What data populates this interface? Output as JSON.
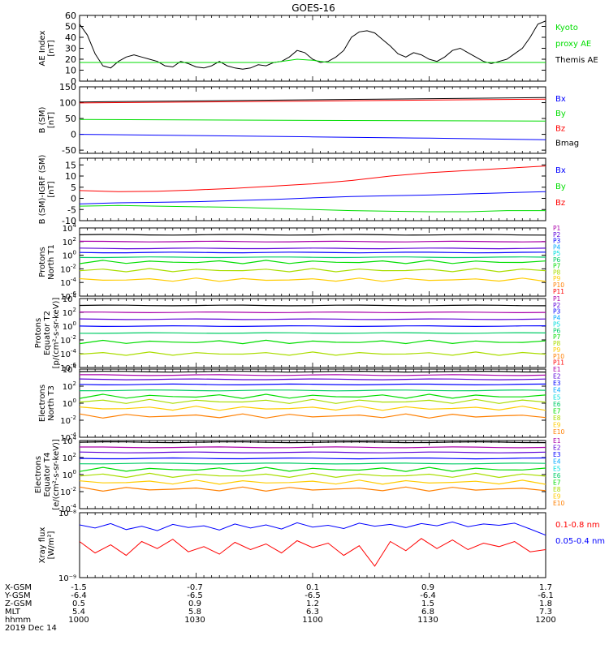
{
  "title": "GOES-16",
  "colors": {
    "black": "#000000",
    "blue": "#0000ff",
    "green": "#00dd00",
    "red": "#ff0000",
    "channel": [
      "#000000",
      "#aa00aa",
      "#5a00d8",
      "#0000ff",
      "#00aaff",
      "#00dddd",
      "#00cc66",
      "#00dd00",
      "#aadd00",
      "#ffcc00",
      "#ff7f00",
      "#ff0000",
      "#ff00aa"
    ]
  },
  "chart_data": [
    {
      "type": "line",
      "panel": "AE",
      "ylabel": [
        "AE Index",
        "[nT]"
      ],
      "yscale": "linear",
      "ylim": [
        0,
        60
      ],
      "yticks": [
        0,
        10,
        20,
        30,
        40,
        50,
        60
      ],
      "legend": [
        {
          "text": "Kyoto",
          "color": "green"
        },
        {
          "text": "proxy AE",
          "color": "green"
        },
        {
          "text": "Themis AE",
          "color": "black"
        }
      ],
      "series": [
        {
          "color": "black",
          "x": [
            0,
            2,
            4,
            6,
            8,
            10,
            12,
            14,
            16,
            18,
            20,
            22,
            24,
            26,
            28,
            30,
            32,
            34,
            36,
            38,
            40,
            42,
            44,
            46,
            48,
            50,
            52,
            54,
            56,
            58,
            60,
            62,
            64,
            66,
            68,
            70,
            72,
            74,
            76,
            78,
            80,
            82,
            84,
            86,
            88,
            90,
            92,
            94,
            96,
            98,
            100,
            102,
            104,
            106,
            108,
            110,
            112,
            114,
            116,
            118,
            120
          ],
          "y": [
            52,
            42,
            25,
            14,
            12,
            18,
            22,
            24,
            22,
            20,
            18,
            14,
            13,
            18,
            16,
            13,
            12,
            14,
            18,
            14,
            12,
            11,
            12,
            15,
            14,
            17,
            18,
            22,
            28,
            26,
            20,
            17,
            18,
            22,
            28,
            40,
            45,
            46,
            44,
            38,
            32,
            25,
            22,
            26,
            24,
            20,
            18,
            22,
            28,
            30,
            26,
            22,
            18,
            16,
            18,
            20,
            25,
            30,
            40,
            52,
            55
          ]
        },
        {
          "color": "green",
          "x": [
            0,
            46,
            50,
            52,
            56,
            60,
            64,
            68,
            120
          ],
          "y": [
            17,
            17,
            17,
            18,
            20,
            19,
            17,
            17,
            17
          ]
        }
      ]
    },
    {
      "type": "line",
      "panel": "B-SM",
      "ylabel": [
        "B (SM)",
        "[nT]"
      ],
      "yscale": "linear",
      "ylim": [
        -60,
        150
      ],
      "yticks": [
        -50,
        0,
        50,
        100,
        150
      ],
      "legend": [
        {
          "text": "Bx",
          "color": "blue"
        },
        {
          "text": "By",
          "color": "green"
        },
        {
          "text": "Bz",
          "color": "red"
        },
        {
          "text": "Bmag",
          "color": "black"
        }
      ],
      "series": [
        {
          "color": "black",
          "x": [
            0,
            120
          ],
          "y": [
            102,
            116
          ]
        },
        {
          "color": "red",
          "x": [
            0,
            120
          ],
          "y": [
            99,
            111
          ]
        },
        {
          "color": "green",
          "x": [
            0,
            60,
            120
          ],
          "y": [
            47,
            44,
            42
          ]
        },
        {
          "color": "blue",
          "x": [
            0,
            30,
            60,
            90,
            120
          ],
          "y": [
            0,
            -4,
            -8,
            -12,
            -17
          ]
        }
      ]
    },
    {
      "type": "line",
      "panel": "B-IGRF",
      "ylabel": [
        "B (SM)-IGRF (SM)",
        "[nT]"
      ],
      "yscale": "linear",
      "ylim": [
        -10,
        18
      ],
      "yticks": [
        -10,
        -5,
        0,
        5,
        10,
        15
      ],
      "legend": [
        {
          "text": "Bx",
          "color": "blue"
        },
        {
          "text": "By",
          "color": "green"
        },
        {
          "text": "Bz",
          "color": "red"
        }
      ],
      "series": [
        {
          "color": "red",
          "x": [
            0,
            10,
            20,
            30,
            40,
            50,
            60,
            70,
            80,
            90,
            100,
            110,
            120
          ],
          "y": [
            3.5,
            3,
            3.2,
            3.8,
            4.5,
            5.5,
            6.5,
            8,
            10,
            11.5,
            12.5,
            13.5,
            14.5
          ]
        },
        {
          "color": "blue",
          "x": [
            0,
            10,
            20,
            30,
            40,
            50,
            60,
            70,
            80,
            90,
            100,
            110,
            120
          ],
          "y": [
            -2.5,
            -2,
            -1.8,
            -1.5,
            -1,
            -0.5,
            0.2,
            0.8,
            1.2,
            1.5,
            2,
            2.5,
            3
          ]
        },
        {
          "color": "green",
          "x": [
            0,
            10,
            20,
            30,
            40,
            50,
            60,
            70,
            80,
            90,
            100,
            110,
            120
          ],
          "y": [
            -3.5,
            -3.2,
            -3.5,
            -3.8,
            -4,
            -4.5,
            -5,
            -5.5,
            -5.8,
            -6,
            -6,
            -5.5,
            -5.5
          ]
        }
      ]
    },
    {
      "type": "line",
      "panel": "Protons-T1",
      "ylabel": [
        "Protons",
        "North T1"
      ],
      "yscale": "log",
      "ylim": [
        1e-06,
        10000.0
      ],
      "ytick_exp": [
        -6,
        -4,
        -2,
        0,
        2,
        4
      ],
      "channel_labels": [
        "P1",
        "P2",
        "P3",
        "P4",
        "P5",
        "P6",
        "P7",
        "P8",
        "P9",
        "P10",
        "P11"
      ],
      "levels_log10": [
        3.0,
        2.0,
        1.0,
        0.4,
        -0.3,
        -1.0,
        -2.2,
        -3.6
      ]
    },
    {
      "type": "line",
      "panel": "Protons-T2",
      "ylabel": [
        "Protons",
        "Equator T2",
        "[p/(cm²-s-sr-keV)]"
      ],
      "yscale": "log",
      "ylim": [
        1e-06,
        10000.0
      ],
      "ytick_exp": [
        -6,
        -4,
        -2,
        0,
        2,
        4
      ],
      "channel_labels": [
        "P1",
        "P2",
        "P3",
        "P4",
        "P5",
        "P6",
        "P7",
        "P8",
        "P9",
        "P10",
        "P11"
      ],
      "levels_log10": [
        3.0,
        2.0,
        1.0,
        0.0,
        -1.0,
        -2.3,
        -4.0
      ]
    },
    {
      "type": "line",
      "panel": "Electrons-T3",
      "ylabel": [
        "Electrons",
        "North T3"
      ],
      "yscale": "log",
      "ylim": [
        0.0001,
        10000.0
      ],
      "ytick_exp": [
        -4,
        -2,
        0,
        2,
        4
      ],
      "channel_labels": [
        "E1",
        "E2",
        "E3",
        "E4",
        "E5",
        "E6",
        "E7",
        "E8",
        "E9",
        "E10"
      ],
      "levels_log10": [
        3.7,
        3.3,
        2.8,
        2.2,
        1.5,
        0.8,
        0.2,
        -0.6,
        -1.5
      ]
    },
    {
      "type": "line",
      "panel": "Electrons-T4",
      "ylabel": [
        "Electrons",
        "Equator T4",
        "[e/(cm²-s-sr-keV)]"
      ],
      "yscale": "log",
      "ylim": [
        0.0001,
        10000.0
      ],
      "ytick_exp": [
        -4,
        -2,
        0,
        2,
        4
      ],
      "channel_labels": [
        "E1",
        "E2",
        "E3",
        "E4",
        "E5",
        "E6",
        "E7",
        "E8",
        "E9",
        "E10"
      ],
      "levels_log10": [
        3.8,
        3.2,
        2.6,
        1.9,
        1.3,
        0.6,
        -0.1,
        -0.9,
        -1.7
      ]
    },
    {
      "type": "line",
      "panel": "Xray",
      "ylabel": [
        "Xray flux",
        "[W/m²]"
      ],
      "yscale": "log",
      "ylim": [
        1e-09,
        1e-08
      ],
      "ytick_labels": [
        {
          "text": "10⁻⁸",
          "value": 1e-08
        },
        {
          "text": "10⁻⁹",
          "value": 1e-09
        }
      ],
      "legend": [
        {
          "text": "0.1-0.8 nm",
          "color": "red"
        },
        {
          "text": "0.05-0.4 nm",
          "color": "blue"
        }
      ],
      "series": [
        {
          "color": "blue",
          "x": [
            0,
            4,
            8,
            12,
            16,
            20,
            24,
            28,
            32,
            36,
            40,
            44,
            48,
            52,
            56,
            60,
            64,
            68,
            72,
            76,
            80,
            84,
            88,
            92,
            96,
            100,
            104,
            108,
            112,
            116,
            120
          ],
          "y": [
            6.5e-09,
            5.8e-09,
            6.8e-09,
            5.5e-09,
            6.2e-09,
            5.3e-09,
            6.6e-09,
            5.9e-09,
            6.3e-09,
            5.4e-09,
            6.7e-09,
            5.8e-09,
            6.5e-09,
            5.6e-09,
            7e-09,
            6e-09,
            6.4e-09,
            5.7e-09,
            6.9e-09,
            6.2e-09,
            6.6e-09,
            5.9e-09,
            6.8e-09,
            6.3e-09,
            7.2e-09,
            6.1e-09,
            6.7e-09,
            6.4e-09,
            6.9e-09,
            5.6e-09,
            4.5e-09
          ]
        },
        {
          "color": "red",
          "x": [
            0,
            4,
            8,
            12,
            16,
            20,
            24,
            28,
            32,
            36,
            40,
            44,
            48,
            52,
            56,
            60,
            64,
            68,
            72,
            76,
            80,
            84,
            88,
            92,
            96,
            100,
            104,
            108,
            112,
            116,
            120
          ],
          "y": [
            3.6e-09,
            2.4e-09,
            3.2e-09,
            2.2e-09,
            3.6e-09,
            2.8e-09,
            3.9e-09,
            2.5e-09,
            3e-09,
            2.3e-09,
            3.5e-09,
            2.7e-09,
            3.3e-09,
            2.4e-09,
            3.7e-09,
            2.9e-09,
            3.4e-09,
            2.2e-09,
            3.1e-09,
            1.5e-09,
            3.6e-09,
            2.6e-09,
            4e-09,
            2.8e-09,
            3.8e-09,
            2.7e-09,
            3.4e-09,
            3e-09,
            3.6e-09,
            2.5e-09,
            2.7e-09
          ]
        }
      ]
    }
  ],
  "xaxis": {
    "rows": [
      {
        "label": "X-GSM",
        "values": [
          "-1.5",
          "-0.7",
          "0.1",
          "0.9",
          "1.7"
        ]
      },
      {
        "label": "Y-GSM",
        "values": [
          "-6.4",
          "-6.5",
          "-6.5",
          "-6.4",
          "-6.1"
        ]
      },
      {
        "label": "Z-GSM",
        "values": [
          "0.5",
          "0.9",
          "1.2",
          "1.5",
          "1.8"
        ]
      },
      {
        "label": "MLT",
        "values": [
          "5.4",
          "5.8",
          "6.3",
          "6.8",
          "7.3"
        ]
      },
      {
        "label": "hhmm",
        "values": [
          "1000",
          "1030",
          "1100",
          "1130",
          "1200"
        ]
      }
    ],
    "date": "2019 Dec 14"
  }
}
